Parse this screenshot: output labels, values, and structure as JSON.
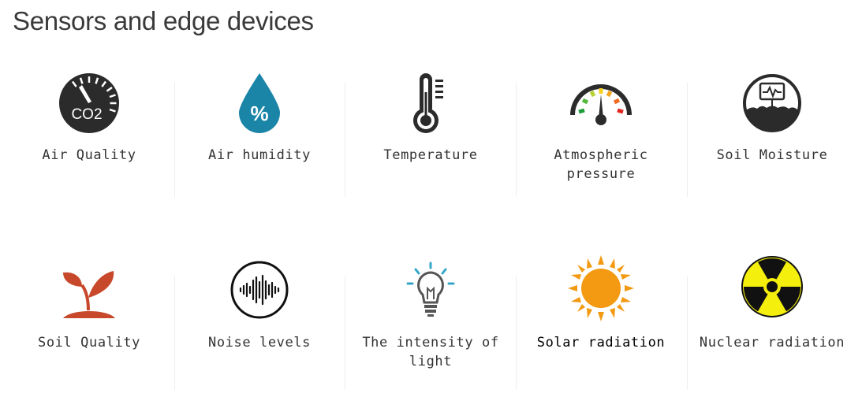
{
  "header": {
    "title": "Sensors and edge devices"
  },
  "sensors": [
    {
      "label": "Air Quality",
      "icon": "co2-gauge-icon",
      "icon_text": "CO2"
    },
    {
      "label": "Air humidity",
      "icon": "humidity-drop-icon",
      "icon_text": "%"
    },
    {
      "label": "Temperature",
      "icon": "thermometer-icon"
    },
    {
      "label": "Atmospheric pressure",
      "icon": "pressure-gauge-icon"
    },
    {
      "label": "Soil Moisture",
      "icon": "soil-moisture-icon"
    },
    {
      "label": "Soil Quality",
      "icon": "plant-sprout-icon"
    },
    {
      "label": "Noise levels",
      "icon": "sound-wave-icon"
    },
    {
      "label": "The intensity of light",
      "icon": "light-bulb-icon"
    },
    {
      "label": "Solar radiation",
      "icon": "sun-icon"
    },
    {
      "label": "Nuclear radiation",
      "icon": "radiation-icon"
    }
  ],
  "colors": {
    "dark": "#2b2b2b",
    "drop": "#1b85a8",
    "plant": "#c8482b",
    "sun": "#f39a12",
    "radiation_bg": "#f4ef0c"
  }
}
